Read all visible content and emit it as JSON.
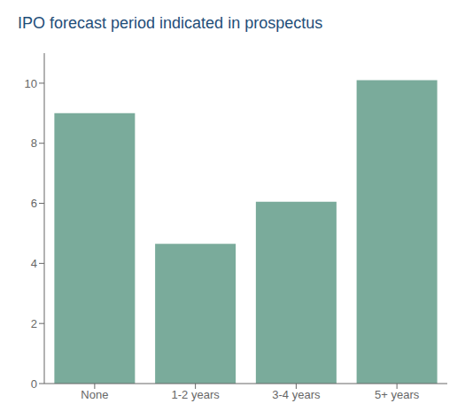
{
  "chart_data": {
    "type": "bar",
    "title": "IPO forecast period indicated in prospectus",
    "categories": [
      "None",
      "1-2 years",
      "3-4 years",
      "5+ years"
    ],
    "values": [
      9.0,
      4.65,
      6.05,
      10.1
    ],
    "color": "#7aab9b",
    "ylim": [
      0,
      11
    ],
    "yticks": [
      0,
      2,
      4,
      6,
      8,
      10
    ],
    "grid": false
  }
}
